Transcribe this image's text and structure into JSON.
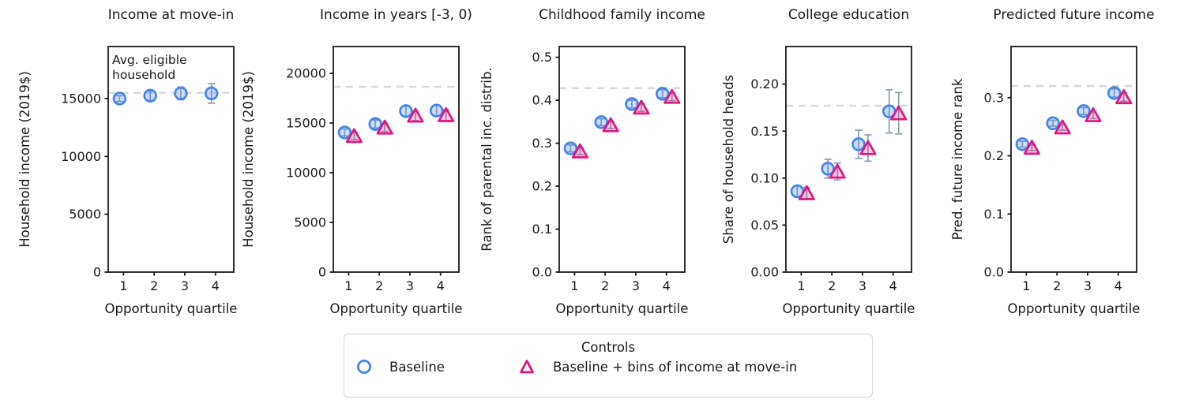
{
  "figure": {
    "xlabel": "Opportunity quartile",
    "x_tick_labels": [
      "1",
      "2",
      "3",
      "4"
    ],
    "legend": {
      "title": "Controls",
      "items": [
        {
          "label": "Baseline",
          "marker": "circle",
          "color": "#4285f0"
        },
        {
          "label": "Baseline + bins of income at move-in",
          "marker": "triangle",
          "color": "#e11480"
        }
      ]
    },
    "colors": {
      "baseline_blue": "#4285f0",
      "bins_pink": "#e11480",
      "error_bar": "#8695ab",
      "ref_line": "#d8d8d8",
      "annotation_gray": "#9a9a9a",
      "axis": "#1a1a1a"
    }
  },
  "chart_data": [
    {
      "type": "scatter",
      "title": "Income at move-in",
      "ylabel": "Household income (2019$)",
      "xlabel": "Opportunity quartile",
      "x": [
        1,
        2,
        3,
        4
      ],
      "x_tick_labels": [
        "1",
        "2",
        "3",
        "4"
      ],
      "ytick_values": [
        0,
        5000,
        10000,
        15000
      ],
      "ytick_labels": [
        "0",
        "5000",
        "10000",
        "15000"
      ],
      "ylim": [
        0,
        19500
      ],
      "ref_line": 15500,
      "annotation_lines": [
        "Avg. eligible",
        "household"
      ],
      "grid": false,
      "series": [
        {
          "name": "Baseline",
          "marker": "circle",
          "y": [
            15000,
            15250,
            15450,
            15450
          ],
          "err": [
            250,
            400,
            550,
            850
          ]
        }
      ]
    },
    {
      "type": "scatter",
      "title": "Income in years [-3, 0)",
      "ylabel": "Household income (2019$)",
      "xlabel": "Opportunity quartile",
      "x": [
        1,
        2,
        3,
        4
      ],
      "x_tick_labels": [
        "1",
        "2",
        "3",
        "4"
      ],
      "ytick_values": [
        0,
        5000,
        10000,
        15000,
        20000
      ],
      "ytick_labels": [
        "0",
        "5000",
        "10000",
        "15000",
        "20000"
      ],
      "ylim": [
        0,
        22700
      ],
      "ref_line": 18650,
      "annotation_lines": [],
      "grid": false,
      "series": [
        {
          "name": "Baseline",
          "marker": "circle",
          "y": [
            14050,
            14900,
            16200,
            16250
          ],
          "err": [
            350,
            400,
            500,
            550
          ]
        },
        {
          "name": "Baseline + bins of income at move-in",
          "marker": "triangle",
          "y": [
            13700,
            14550,
            15750,
            15800
          ],
          "err": [
            350,
            400,
            500,
            550
          ]
        }
      ]
    },
    {
      "type": "scatter",
      "title": "Childhood family income",
      "ylabel": "Rank of parental inc. distrib.",
      "xlabel": "Opportunity quartile",
      "x": [
        1,
        2,
        3,
        4
      ],
      "x_tick_labels": [
        "1",
        "2",
        "3",
        "4"
      ],
      "ytick_values": [
        0.0,
        0.1,
        0.2,
        0.3,
        0.4,
        0.5
      ],
      "ytick_labels": [
        "0.0",
        "0.1",
        "0.2",
        "0.3",
        "0.4",
        "0.5"
      ],
      "ylim": [
        0,
        0.525
      ],
      "ref_line": 0.428,
      "annotation_lines": [],
      "grid": false,
      "series": [
        {
          "name": "Baseline",
          "marker": "circle",
          "y": [
            0.288,
            0.349,
            0.391,
            0.415
          ],
          "err": [
            0.008,
            0.008,
            0.009,
            0.009
          ]
        },
        {
          "name": "Baseline + bins of income at move-in",
          "marker": "triangle",
          "y": [
            0.281,
            0.342,
            0.383,
            0.408
          ],
          "err": [
            0.008,
            0.008,
            0.009,
            0.009
          ]
        }
      ]
    },
    {
      "type": "scatter",
      "title": "College education",
      "ylabel": "Share of household heads",
      "xlabel": "Opportunity quartile",
      "x": [
        1,
        2,
        3,
        4
      ],
      "x_tick_labels": [
        "1",
        "2",
        "3",
        "4"
      ],
      "ytick_values": [
        0.0,
        0.05,
        0.1,
        0.15,
        0.2
      ],
      "ytick_labels": [
        "0.00",
        "0.05",
        "0.10",
        "0.15",
        "0.20"
      ],
      "ylim": [
        0,
        0.24
      ],
      "ref_line": 0.177,
      "annotation_lines": [],
      "grid": false,
      "series": [
        {
          "name": "Baseline",
          "marker": "circle",
          "y": [
            0.086,
            0.11,
            0.136,
            0.171
          ],
          "err": [
            0.006,
            0.01,
            0.015,
            0.023
          ]
        },
        {
          "name": "Baseline + bins of income at move-in",
          "marker": "triangle",
          "y": [
            0.084,
            0.107,
            0.132,
            0.169
          ],
          "err": [
            0.006,
            0.009,
            0.014,
            0.022
          ]
        }
      ]
    },
    {
      "type": "scatter",
      "title": "Predicted future income",
      "ylabel": "Pred. future income rank",
      "xlabel": "Opportunity quartile",
      "x": [
        1,
        2,
        3,
        4
      ],
      "x_tick_labels": [
        "1",
        "2",
        "3",
        "4"
      ],
      "ytick_values": [
        0.0,
        0.1,
        0.2,
        0.3
      ],
      "ytick_labels": [
        "0.0",
        "0.1",
        "0.2",
        "0.3"
      ],
      "ylim": [
        0,
        0.388
      ],
      "ref_line": 0.32,
      "annotation_lines": [],
      "grid": false,
      "series": [
        {
          "name": "Baseline",
          "marker": "circle",
          "y": [
            0.22,
            0.256,
            0.277,
            0.308
          ],
          "err": [
            0.005,
            0.005,
            0.006,
            0.007
          ]
        },
        {
          "name": "Baseline + bins of income at move-in",
          "marker": "triangle",
          "y": [
            0.214,
            0.249,
            0.27,
            0.301
          ],
          "err": [
            0.005,
            0.005,
            0.006,
            0.007
          ]
        }
      ]
    }
  ]
}
